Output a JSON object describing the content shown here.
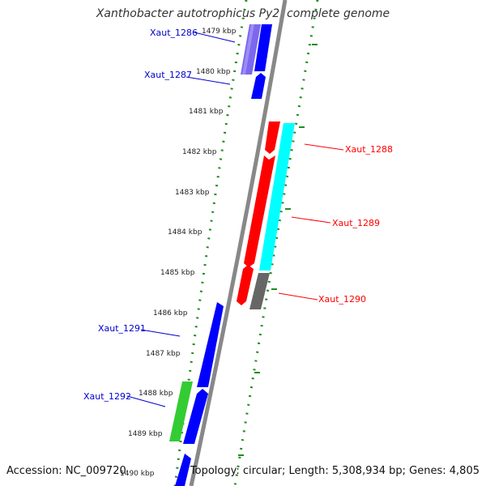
{
  "title": "Xanthobacter autotrophicus Py2, complete genome",
  "footer": {
    "accession": "Accession: NC_009720",
    "topology": "Topology: circular; Length: 5,308,934 bp; Genes: 4,805"
  },
  "ticks": [
    "1479 kbp",
    "1480 kbp",
    "1481 kbp",
    "1482 kbp",
    "1483 kbp",
    "1484 kbp",
    "1485 kbp",
    "1486 kbp",
    "1487 kbp",
    "1488 kbp",
    "1489 kbp",
    "1490 kbp"
  ],
  "genes": [
    {
      "name": "Xaut_1286",
      "strand": "-",
      "color": "#7b68ee"
    },
    {
      "name": "Xaut_1287",
      "strand": "-",
      "color": "#0000ff"
    },
    {
      "name": "Xaut_1288",
      "strand": "+",
      "color": "#ff0000"
    },
    {
      "name": "Xaut_1289",
      "strand": "+",
      "color": "#00ffff"
    },
    {
      "name": "Xaut_1290",
      "strand": "+",
      "color": "#808080"
    },
    {
      "name": "Xaut_1291",
      "strand": "-",
      "color": "#0000ff"
    },
    {
      "name": "Xaut_1292",
      "strand": "-",
      "color": "#33cc33"
    }
  ],
  "colors": {
    "backbone": "#888888",
    "dots": "#228b22",
    "plus_label": "#ff0000",
    "minus_label": "#0000cc"
  }
}
